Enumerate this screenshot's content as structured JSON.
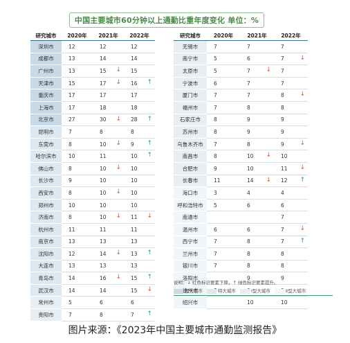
{
  "title": "中国主要城市60分钟以上通勤比重年度变化  单位：%",
  "headers": [
    "研究城市",
    "2020年",
    "2021年",
    "2022年"
  ],
  "note": "说明：↓ 红色标识要素下降，↑ 绿色标识要素提升。",
  "legend": [
    "超大城市",
    "特大城市",
    "Ⅰ型大城市",
    "Ⅱ型大城市"
  ],
  "source": "图片来源：《2023年中国主要城市通勤监测报告》",
  "colors": {
    "down": "#d9542c",
    "up": "#3e9a6a",
    "title": "#4a8a4a"
  },
  "chart_data": {
    "type": "table",
    "columns": [
      "研究城市",
      "2020年",
      "2021年",
      "2022年"
    ],
    "rows": [
      {
        "city": "深圳市",
        "v": [
          "12",
          "12",
          "12"
        ],
        "a21": "",
        "a22": "",
        "tier": "mega"
      },
      {
        "city": "成都市",
        "v": [
          "13",
          "14",
          "14"
        ],
        "a21": "",
        "a22": "",
        "tier": "mega"
      },
      {
        "city": "广州市",
        "v": [
          "13",
          "15",
          "15"
        ],
        "a21": "down",
        "a22": "",
        "tier": "mega"
      },
      {
        "city": "天津市",
        "v": [
          "15",
          "17",
          "16"
        ],
        "a21": "down",
        "a22": "up",
        "tier": "mega"
      },
      {
        "city": "重庆市",
        "v": [
          "17",
          "17",
          "17"
        ],
        "a21": "",
        "a22": "",
        "tier": "mega"
      },
      {
        "city": "上海市",
        "v": [
          "17",
          "18",
          "18"
        ],
        "a21": "",
        "a22": "",
        "tier": "mega"
      },
      {
        "city": "北京市",
        "v": [
          "27",
          "30",
          "28"
        ],
        "a21": "down",
        "a22": "up",
        "tier": "mega"
      },
      {
        "city": "昆明市",
        "v": [
          "7",
          "8",
          "8"
        ],
        "a21": "",
        "a22": "",
        "tier": "super"
      },
      {
        "city": "东莞市",
        "v": [
          "8",
          "10",
          "9"
        ],
        "a21": "down",
        "a22": "up",
        "tier": "super"
      },
      {
        "city": "哈尔滨市",
        "v": [
          "10",
          "11",
          "10"
        ],
        "a21": "",
        "a22": "up",
        "tier": "super"
      },
      {
        "city": "佛山市",
        "v": [
          "8",
          "10",
          "10"
        ],
        "a21": "down",
        "a22": "",
        "tier": "super"
      },
      {
        "city": "长沙市",
        "v": [
          "9",
          "10",
          "10"
        ],
        "a21": "",
        "a22": "",
        "tier": "super"
      },
      {
        "city": "西安市",
        "v": [
          "8",
          "10",
          "10"
        ],
        "a21": "down",
        "a22": "",
        "tier": "super"
      },
      {
        "city": "郑州市",
        "v": [
          "10",
          "10",
          "10"
        ],
        "a21": "",
        "a22": "",
        "tier": "super"
      },
      {
        "city": "济南市",
        "v": [
          "8",
          "10",
          "11"
        ],
        "a21": "down",
        "a22": "down",
        "tier": "super"
      },
      {
        "city": "杭州市",
        "v": [
          "11",
          "11",
          "11"
        ],
        "a21": "",
        "a22": "",
        "tier": "super"
      },
      {
        "city": "南京市",
        "v": [
          "13",
          "13",
          "13"
        ],
        "a21": "",
        "a22": "",
        "tier": "super"
      },
      {
        "city": "沈阳市",
        "v": [
          "12",
          "14",
          "13"
        ],
        "a21": "down",
        "a22": "up",
        "tier": "super"
      },
      {
        "city": "大连市",
        "v": [
          "13",
          "13",
          "13"
        ],
        "a21": "",
        "a22": "",
        "tier": "super"
      },
      {
        "city": "青岛市",
        "v": [
          "14",
          "16",
          "15"
        ],
        "a21": "down",
        "a22": "up",
        "tier": "super"
      },
      {
        "city": "武汉市",
        "v": [
          "14",
          "14",
          "15"
        ],
        "a21": "",
        "a22": "down",
        "tier": "super"
      },
      {
        "city": "常州市",
        "v": [
          "5",
          "6",
          "6"
        ],
        "a21": "",
        "a22": "",
        "tier": "large1"
      },
      {
        "city": "贵阳市",
        "v": [
          "7",
          "8",
          "7"
        ],
        "a21": "",
        "a22": "up",
        "tier": "large1"
      },
      {
        "city": "无锡市",
        "v": [
          "7",
          "7",
          "7"
        ],
        "a21": "",
        "a22": "",
        "tier": "large1"
      },
      {
        "city": "南宁市",
        "v": [
          "5",
          "6",
          "7"
        ],
        "a21": "",
        "a22": "down",
        "tier": "large1"
      },
      {
        "city": "太原市",
        "v": [
          "5",
          "7",
          "7"
        ],
        "a21": "down",
        "a22": "",
        "tier": "large1"
      },
      {
        "city": "宁波市",
        "v": [
          "6",
          "7",
          "7"
        ],
        "a21": "",
        "a22": "",
        "tier": "large1"
      },
      {
        "city": "厦门市",
        "v": [
          "7",
          "7",
          "8"
        ],
        "a21": "",
        "a22": "down",
        "tier": "large1"
      },
      {
        "city": "福州市",
        "v": [
          "7",
          "8",
          "8"
        ],
        "a21": "",
        "a22": "",
        "tier": "large1"
      },
      {
        "city": "石家庄市",
        "v": [
          "8",
          "9",
          "9"
        ],
        "a21": "",
        "a22": "",
        "tier": "large1"
      },
      {
        "city": "苏州市",
        "v": [
          "8",
          "9",
          "9"
        ],
        "a21": "",
        "a22": "",
        "tier": "large1"
      },
      {
        "city": "乌鲁木齐市",
        "v": [
          "7",
          "8",
          "9"
        ],
        "a21": "",
        "a22": "down",
        "tier": "large1"
      },
      {
        "city": "南昌市",
        "v": [
          "8",
          "10",
          "10"
        ],
        "a21": "down",
        "a22": "",
        "tier": "large1"
      },
      {
        "city": "合肥市",
        "v": [
          "9",
          "10",
          "11"
        ],
        "a21": "",
        "a22": "down",
        "tier": "large1"
      },
      {
        "city": "长春市",
        "v": [
          "11",
          "14",
          "12"
        ],
        "a21": "down",
        "a22": "up",
        "tier": "large1"
      },
      {
        "city": "海口市",
        "v": [
          "3",
          "4",
          "4"
        ],
        "a21": "",
        "a22": "",
        "tier": "large2"
      },
      {
        "city": "呼和浩特市",
        "v": [
          "5",
          "6",
          "6"
        ],
        "a21": "",
        "a22": "",
        "tier": "large2"
      },
      {
        "city": "南通市",
        "v": [
          "",
          "",
          "7"
        ],
        "a21": "",
        "a22": "",
        "tier": "large2"
      },
      {
        "city": "温州市",
        "v": [
          "6",
          "6",
          "7"
        ],
        "a21": "",
        "a22": "down",
        "tier": "large2"
      },
      {
        "city": "西宁市",
        "v": [
          "7",
          "8",
          "7"
        ],
        "a21": "",
        "a22": "up",
        "tier": "large2"
      },
      {
        "city": "兰州市",
        "v": [
          "7",
          "8",
          "8"
        ],
        "a21": "",
        "a22": "",
        "tier": "large2"
      },
      {
        "city": "银川市",
        "v": [
          "7",
          "8",
          "8"
        ],
        "a21": "",
        "a22": "",
        "tier": "large2"
      },
      {
        "city": "洛阳市",
        "v": [
          "",
          "9",
          "9"
        ],
        "a21": "",
        "a22": "",
        "tier": "large2"
      },
      {
        "city": "徐州市",
        "v": [
          "8",
          "9",
          "9"
        ],
        "a21": "",
        "a22": "",
        "tier": "large2"
      },
      {
        "city": "绍兴市",
        "v": [
          "",
          "10",
          "10"
        ],
        "a21": "",
        "a22": "",
        "tier": "large2"
      }
    ]
  }
}
